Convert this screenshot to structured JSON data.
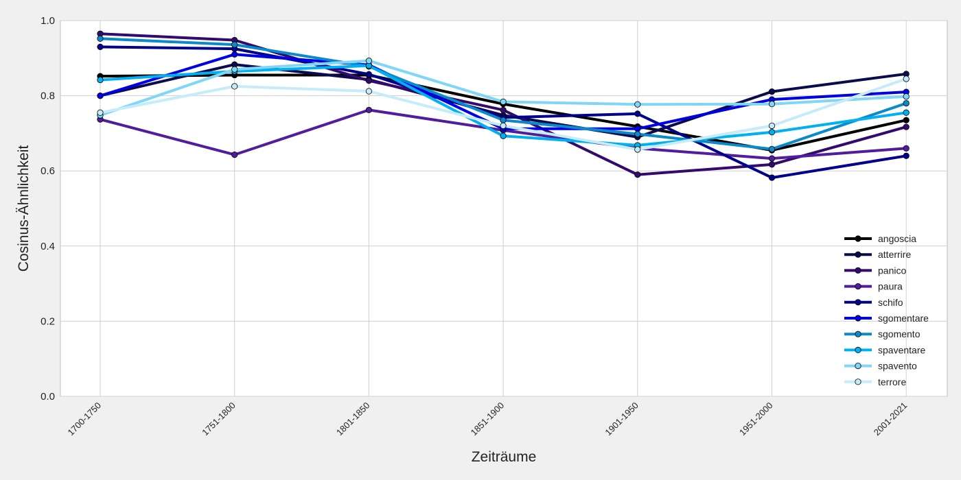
{
  "chart_data": {
    "type": "line",
    "title": "",
    "xlabel": "Zeiträume",
    "ylabel": "Cosinus-Ähnlichkeit",
    "categories": [
      "1700-1750",
      "1751-1800",
      "1801-1850",
      "1851-1900",
      "1901-1950",
      "1951-2000",
      "2001-2021"
    ],
    "yticks": [
      "0.0",
      "0.2",
      "0.4",
      "0.6",
      "0.8",
      "1.0"
    ],
    "ylim": [
      0,
      1
    ],
    "grid": true,
    "legend_position": "lower-right",
    "series": [
      {
        "name": "angoscia",
        "color": "#000000",
        "values": [
          0.852,
          0.855,
          0.855,
          0.778,
          0.718,
          0.655,
          0.735
        ]
      },
      {
        "name": "atterrire",
        "color": "#0b0b4e",
        "values": [
          0.8,
          0.883,
          0.843,
          0.748,
          0.69,
          0.811,
          0.858
        ]
      },
      {
        "name": "panico",
        "color": "#330a6e",
        "values": [
          0.965,
          0.948,
          0.84,
          0.762,
          0.59,
          0.617,
          0.717
        ]
      },
      {
        "name": "paura",
        "color": "#521c9f",
        "values": [
          0.737,
          0.643,
          0.762,
          0.708,
          0.66,
          0.633,
          0.66
        ]
      },
      {
        "name": "schifo",
        "color": "#00008c",
        "values": [
          0.93,
          0.925,
          0.857,
          0.742,
          0.752,
          0.582,
          0.64
        ]
      },
      {
        "name": "sgomentare",
        "color": "#0000e6",
        "values": [
          0.8,
          0.91,
          0.882,
          0.712,
          0.712,
          0.79,
          0.81
        ]
      },
      {
        "name": "sgomento",
        "color": "#0a8acb",
        "values": [
          0.952,
          0.936,
          0.878,
          0.735,
          0.698,
          0.658,
          0.78
        ]
      },
      {
        "name": "spaventare",
        "color": "#00b0f0",
        "values": [
          0.842,
          0.865,
          0.88,
          0.693,
          0.668,
          0.703,
          0.755
        ]
      },
      {
        "name": "spavento",
        "color": "#7fd6f6",
        "values": [
          0.748,
          0.87,
          0.893,
          0.784,
          0.777,
          0.778,
          0.798
        ]
      },
      {
        "name": "terrore",
        "color": "#c5ecf8",
        "values": [
          0.755,
          0.825,
          0.812,
          0.72,
          0.657,
          0.72,
          0.845
        ]
      }
    ]
  }
}
